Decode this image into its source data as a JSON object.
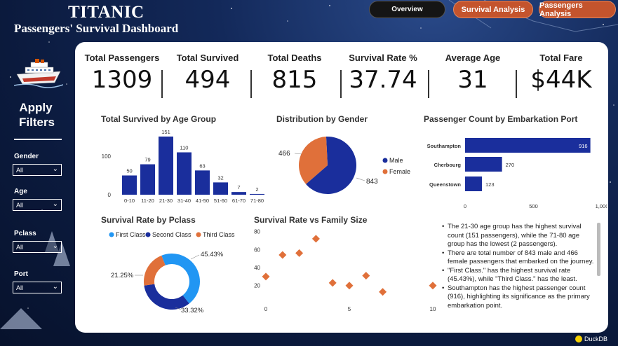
{
  "header": {
    "title": "TITANIC",
    "subtitle": "Passengers' Survival Dashboard"
  },
  "nav": {
    "overview": "Overview",
    "survival_analysis": "Survival Analysis",
    "passengers_analysis": "Passengers Analysis"
  },
  "filters": {
    "title": "Apply Filters",
    "items": [
      {
        "label": "Gender",
        "value": "All"
      },
      {
        "label": "Age",
        "value": "All"
      },
      {
        "label": "Pclass",
        "value": "All"
      },
      {
        "label": "Port",
        "value": "All"
      }
    ]
  },
  "kpis": [
    {
      "label": "Total Passengers",
      "value": "1309"
    },
    {
      "label": "Total Survived",
      "value": "494"
    },
    {
      "label": "Total Deaths",
      "value": "815"
    },
    {
      "label": "Survival Rate %",
      "value": "37.74"
    },
    {
      "label": "Average Age",
      "value": "31"
    },
    {
      "label": "Total Fare",
      "value": "$44K"
    }
  ],
  "colors": {
    "navy": "#1a2e9c",
    "orange": "#e0703a",
    "light_blue": "#2196f3",
    "panel": "#ffffff"
  },
  "chart_data": [
    {
      "type": "bar",
      "title": "Total Survived by Age Group",
      "categories": [
        "0-10",
        "11-20",
        "21-30",
        "31-40",
        "41-50",
        "51-60",
        "61-70",
        "71-80"
      ],
      "values": [
        50,
        79,
        151,
        110,
        63,
        32,
        7,
        2
      ],
      "yticks": [
        0,
        100
      ],
      "ylim": [
        0,
        160
      ],
      "color": "#1a2e9c"
    },
    {
      "type": "pie",
      "title": "Distribution by Gender",
      "slices": [
        {
          "name": "Male",
          "value": 843,
          "color": "#1a2e9c"
        },
        {
          "name": "Female",
          "value": 466,
          "color": "#e0703a"
        }
      ],
      "legend": "right"
    },
    {
      "type": "bar",
      "orientation": "horizontal",
      "title": "Passenger Count by Embarkation Port",
      "categories": [
        "Southampton",
        "Cherbourg",
        "Queenstown"
      ],
      "values": [
        916,
        270,
        123
      ],
      "xticks": [
        "0",
        "500",
        "1,000"
      ],
      "xlim": [
        0,
        1000
      ],
      "color": "#1a2e9c"
    },
    {
      "type": "pie",
      "variant": "donut",
      "title": "Survival Rate by Pclass",
      "slices": [
        {
          "name": "First Class",
          "value": 45.43,
          "label": "45.43%",
          "color": "#2196f3"
        },
        {
          "name": "Second Class",
          "value": 33.32,
          "label": "33.32%",
          "color": "#1a2e9c"
        },
        {
          "name": "Third Class",
          "value": 21.25,
          "label": "21.25%",
          "color": "#e0703a"
        }
      ],
      "legend": "top"
    },
    {
      "type": "scatter",
      "title": "Survival Rate vs Family Size",
      "x": [
        0,
        1,
        2,
        3,
        4,
        5,
        6,
        7,
        10
      ],
      "y": [
        30,
        54,
        56,
        72,
        23,
        20,
        31,
        13,
        20
      ],
      "xticks": [
        0,
        5,
        10
      ],
      "yticks": [
        20,
        40,
        60,
        80
      ],
      "xlim": [
        0,
        10
      ],
      "ylim": [
        12,
        82
      ],
      "marker": "diamond",
      "color": "#e0703a"
    }
  ],
  "insights": [
    "The 21-30 age group has the highest survival count (151 passengers), while the 71-80 age group has the lowest (2 passengers).",
    "There are total number of 843 male and 466 female passengers that embarked on the journey.",
    "\"First Class.\" has the highest survival rate (45.43%), while \"Third Class.\" has the least.",
    "Southampton has the highest passenger count (916), highlighting its significance as the primary embarkation point."
  ],
  "brand": "DuckDB"
}
